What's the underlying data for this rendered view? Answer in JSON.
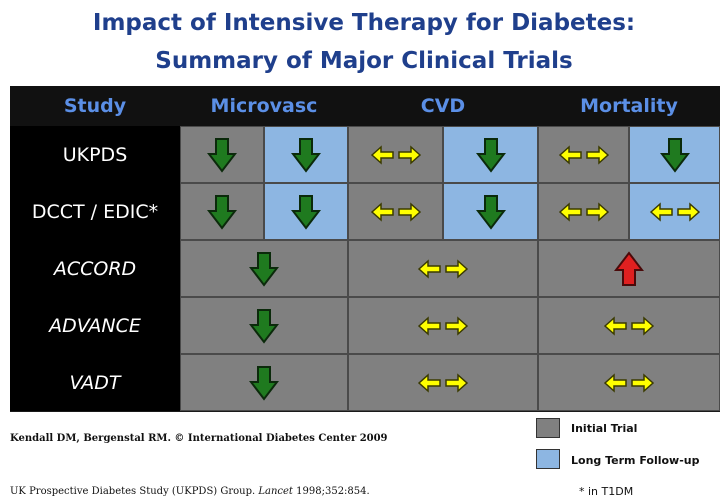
{
  "title": {
    "line1": "Impact of Intensive Therapy for Diabetes:",
    "line2": "Summary of Major Clinical Trials"
  },
  "headers": {
    "study": "Study",
    "microvasc": "Microvasc",
    "cvd": "CVD",
    "mortality": "Mortality"
  },
  "colors": {
    "initial_trial": "#808080",
    "long_term_follow_up": "#8db6e2",
    "decrease_arrow": "#1f7a1f",
    "neutral_arrow": "#ffff00",
    "increase_arrow": "#e02020",
    "title": "#1f3f8c",
    "header_text": "#5b8fe6"
  },
  "rows": [
    {
      "study": "UKPDS",
      "italic": false,
      "cells": [
        {
          "icon": "down-arrow-icon",
          "bg": "initial"
        },
        {
          "icon": "down-arrow-icon",
          "bg": "follow"
        },
        {
          "icon": "left-right-arrow-icon",
          "bg": "initial"
        },
        {
          "icon": "down-arrow-icon",
          "bg": "follow"
        },
        {
          "icon": "left-right-arrow-icon",
          "bg": "initial"
        },
        {
          "icon": "down-arrow-icon",
          "bg": "follow"
        }
      ]
    },
    {
      "study": "DCCT / EDIC*",
      "italic": false,
      "cells": [
        {
          "icon": "down-arrow-icon",
          "bg": "initial"
        },
        {
          "icon": "down-arrow-icon",
          "bg": "follow"
        },
        {
          "icon": "left-right-arrow-icon",
          "bg": "initial"
        },
        {
          "icon": "down-arrow-icon",
          "bg": "follow"
        },
        {
          "icon": "left-right-arrow-icon",
          "bg": "initial"
        },
        {
          "icon": "left-right-arrow-icon",
          "bg": "follow"
        }
      ]
    },
    {
      "study": "ACCORD",
      "italic": true,
      "cells": [
        {
          "icon": "down-arrow-icon",
          "bg": "initial"
        },
        {
          "icon": "left-right-arrow-icon",
          "bg": "initial"
        },
        {
          "icon": "up-arrow-icon",
          "bg": "initial"
        }
      ]
    },
    {
      "study": "ADVANCE",
      "italic": true,
      "cells": [
        {
          "icon": "down-arrow-icon",
          "bg": "initial"
        },
        {
          "icon": "left-right-arrow-icon",
          "bg": "initial"
        },
        {
          "icon": "left-right-arrow-icon",
          "bg": "initial"
        }
      ]
    },
    {
      "study": "VADT",
      "italic": true,
      "cells": [
        {
          "icon": "down-arrow-icon",
          "bg": "initial"
        },
        {
          "icon": "left-right-arrow-icon",
          "bg": "initial"
        },
        {
          "icon": "left-right-arrow-icon",
          "bg": "initial"
        }
      ]
    }
  ],
  "citation": {
    "credit": "Kendall DM, Bergenstal RM.  © International Diabetes Center 2009",
    "reference_prefix": "UK Prospective Diabetes Study (UKPDS) Group. ",
    "reference_journal": "Lancet",
    "reference_suffix": " 1998;352:854."
  },
  "legend": {
    "initial_trial": "Initial Trial",
    "long_term_follow_up": "Long Term Follow-up",
    "footnote": "* in T1DM"
  }
}
